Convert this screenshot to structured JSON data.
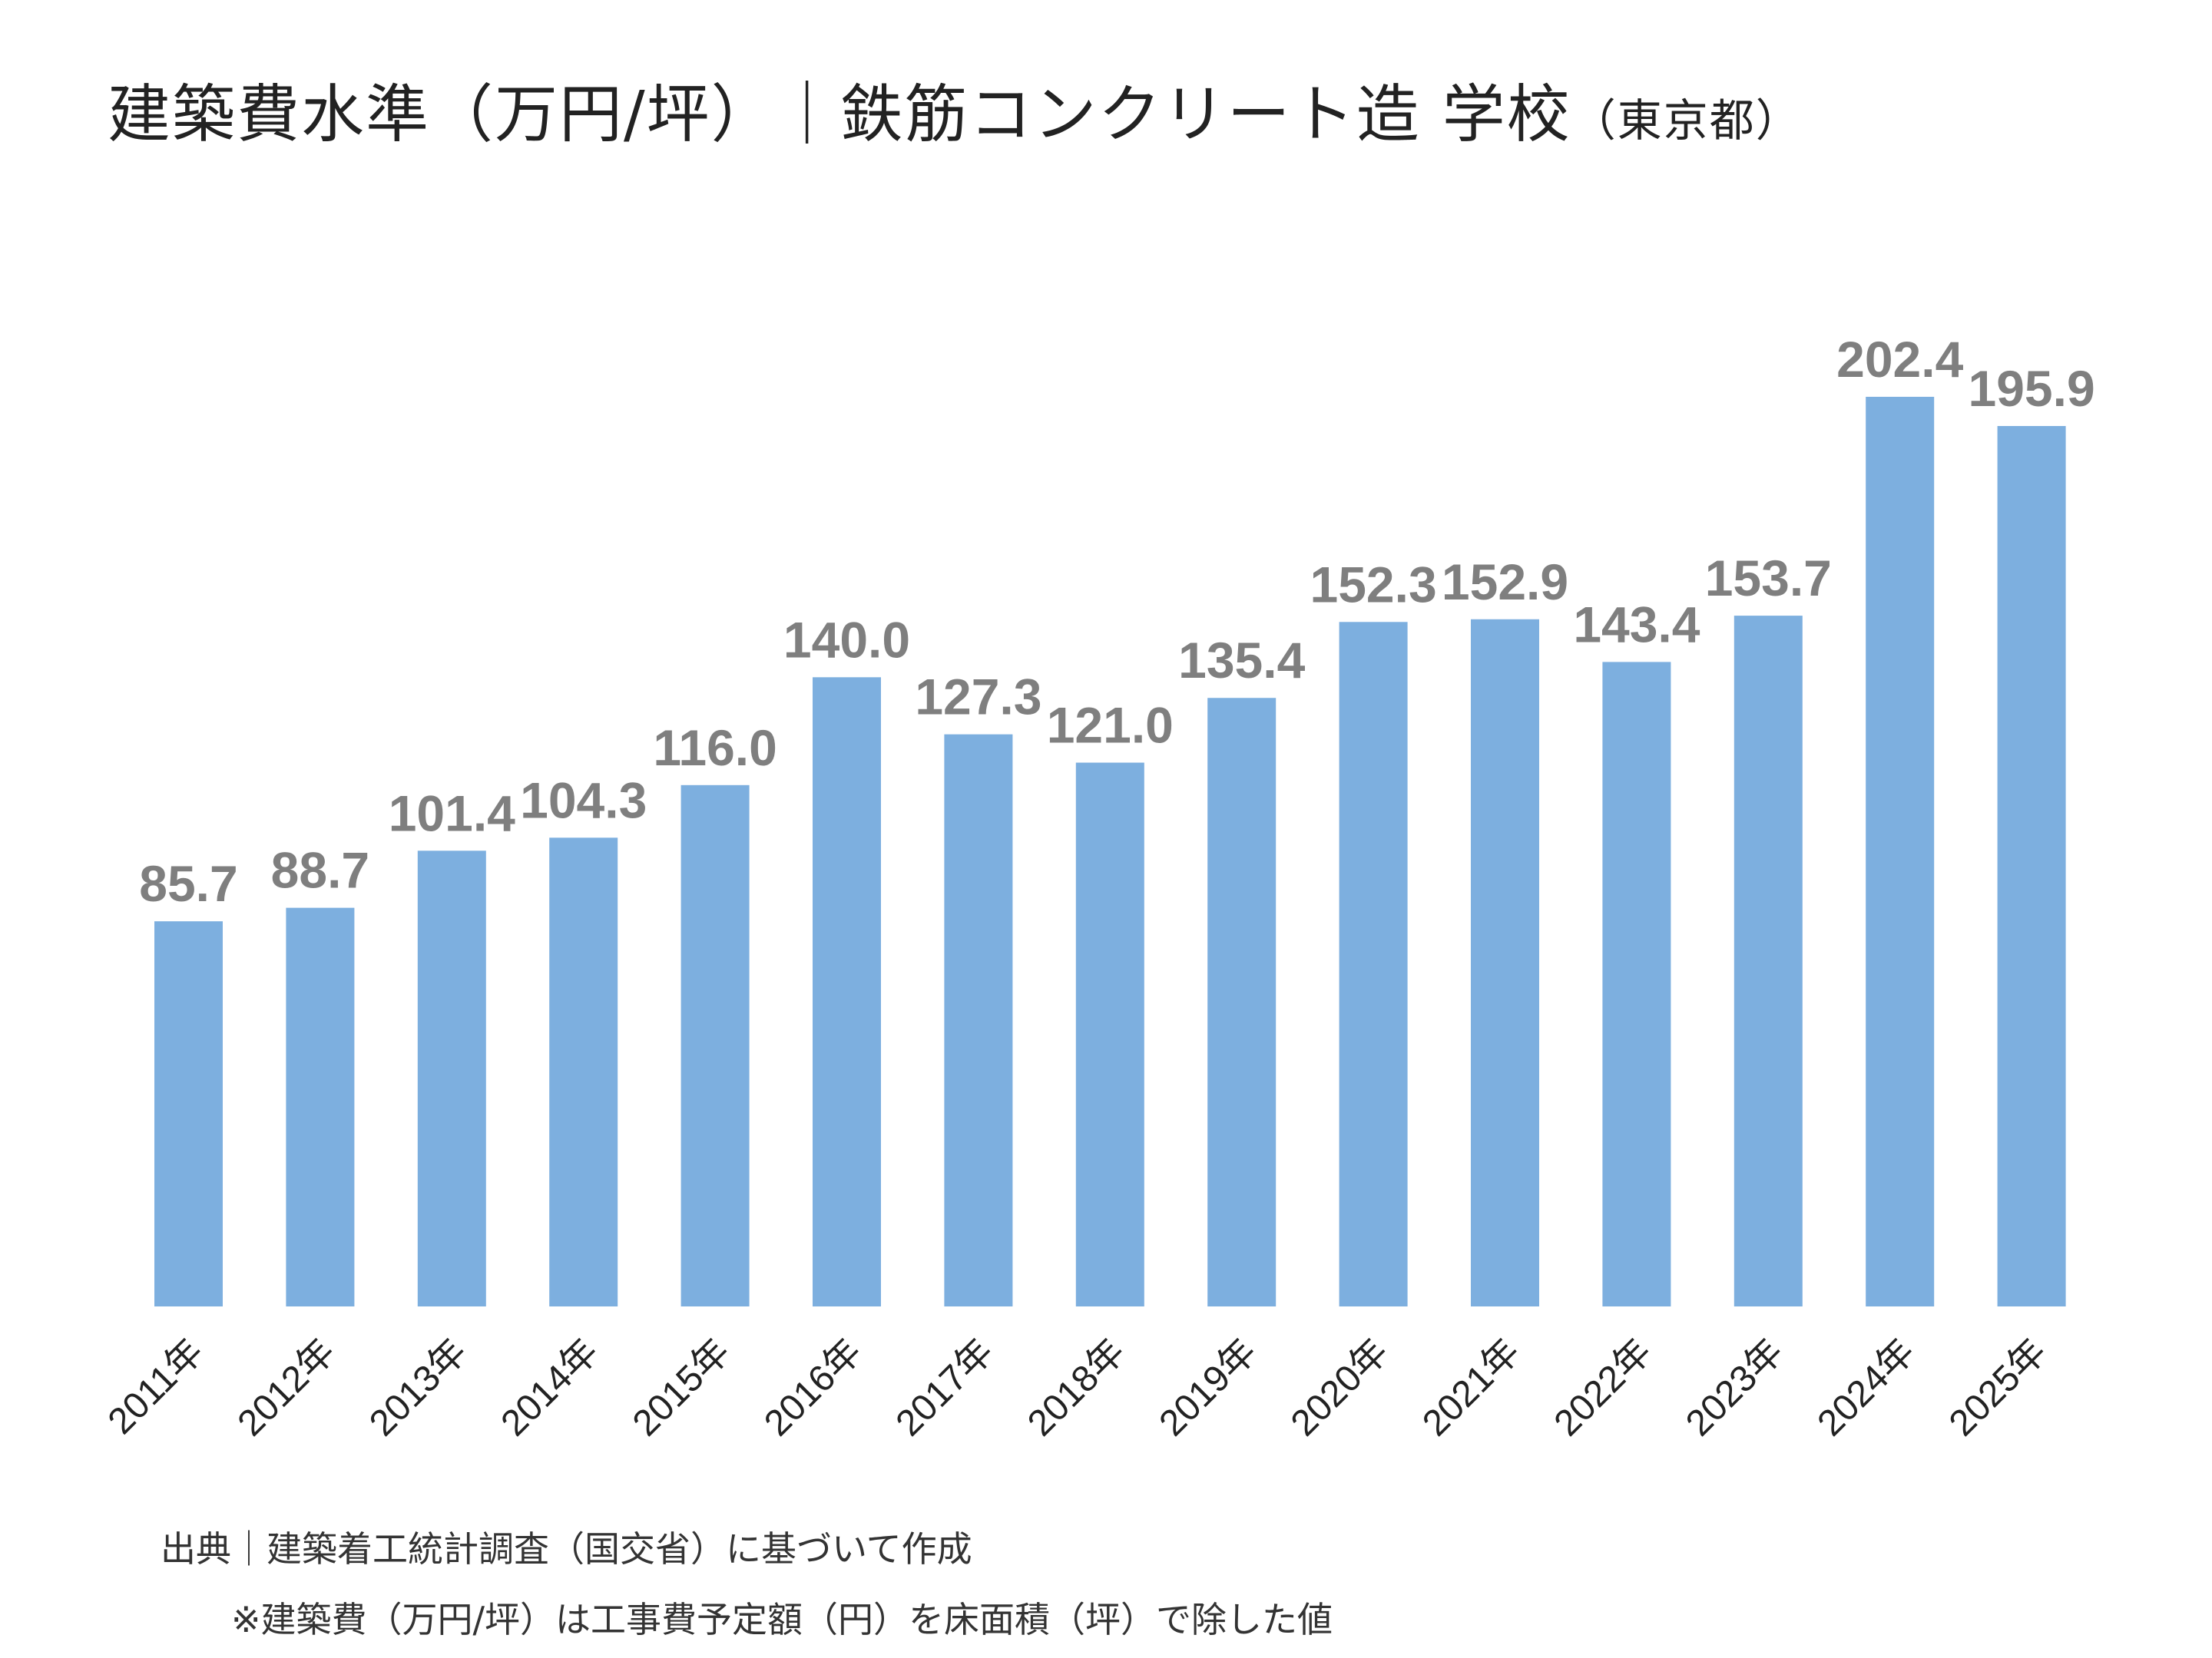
{
  "chart_data": {
    "type": "bar",
    "title": "建築費水準（万円/坪）｜鉄筋コンクリート造 学校",
    "subtitle": "（東京都）",
    "categories": [
      "2011年",
      "2012年",
      "2013年",
      "2014年",
      "2015年",
      "2016年",
      "2017年",
      "2018年",
      "2019年",
      "2020年",
      "2021年",
      "2022年",
      "2023年",
      "2024年",
      "2025年"
    ],
    "values": [
      85.7,
      88.7,
      101.4,
      104.3,
      116.0,
      140.0,
      127.3,
      121.0,
      135.4,
      152.3,
      152.9,
      143.4,
      153.7,
      202.4,
      195.9
    ],
    "value_labels": [
      "85.7",
      "88.7",
      "101.4",
      "104.3",
      "116.0",
      "140.0",
      "127.3",
      "121.0",
      "135.4",
      "152.3",
      "152.9",
      "143.4",
      "153.7",
      "202.4",
      "195.9"
    ],
    "ylim": [
      0,
      210
    ],
    "grid": false,
    "y_axis_visible": false,
    "bar_color": "#7dafdf",
    "label_color": "#7f7f7f"
  },
  "footer": {
    "source": "出典｜建築着工統計調査（国交省）に基づいて作成",
    "note": "※建築費（万円/坪）は工事費予定額（円）を床面積（坪）で除した値"
  }
}
